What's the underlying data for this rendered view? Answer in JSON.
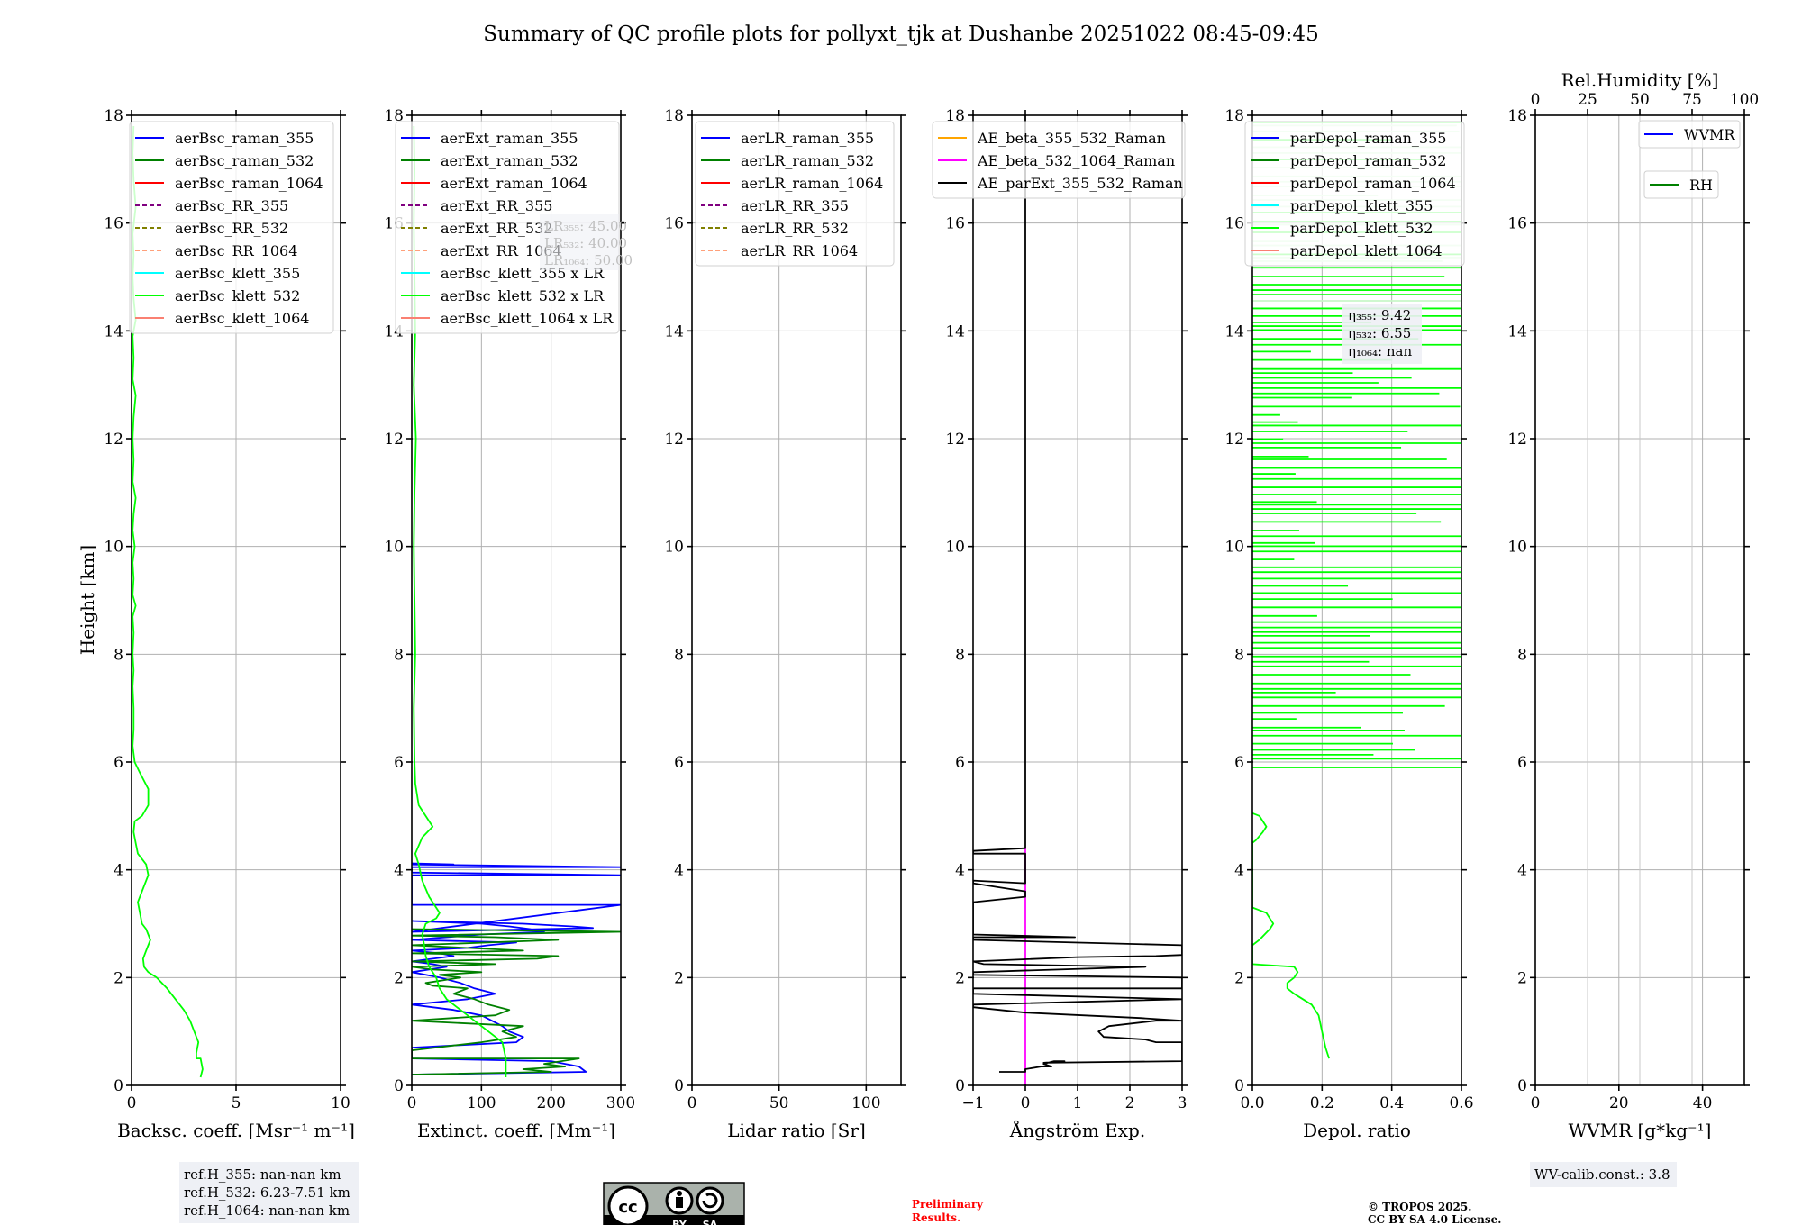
{
  "title": "Summary of QC profile plots for pollyxt_tjk at Dushanbe 20251022 08:45-09:45",
  "ylabel": "Height [km]",
  "chart_data": [
    {
      "type": "line",
      "id": "backscatter",
      "xlabel": "Backsc. coeff. [Msr⁻¹ m⁻¹]",
      "xlim": [
        0,
        10
      ],
      "xticks": [
        0,
        5,
        10
      ],
      "ylim": [
        0,
        18
      ],
      "yticks": [
        0,
        2,
        4,
        6,
        8,
        10,
        12,
        14,
        16,
        18
      ],
      "grid": true,
      "legend_position": "top-right",
      "legend": [
        {
          "label": "aerBsc_raman_355",
          "color": "#0000ff",
          "dash": false
        },
        {
          "label": "aerBsc_raman_532",
          "color": "#008000",
          "dash": false
        },
        {
          "label": "aerBsc_raman_1064",
          "color": "#ff0000",
          "dash": false
        },
        {
          "label": "aerBsc_RR_355",
          "color": "#800080",
          "dash": true
        },
        {
          "label": "aerBsc_RR_532",
          "color": "#808000",
          "dash": true
        },
        {
          "label": "aerBsc_RR_1064",
          "color": "#ffa07a",
          "dash": true
        },
        {
          "label": "aerBsc_klett_355",
          "color": "#00ffff",
          "dash": false
        },
        {
          "label": "aerBsc_klett_532",
          "color": "#00ff00",
          "dash": false
        },
        {
          "label": "aerBsc_klett_1064",
          "color": "#fa8072",
          "dash": false
        }
      ],
      "series": [
        {
          "name": "aerBsc_klett_532",
          "color": "#00ff00",
          "x": [
            3.3,
            3.4,
            3.3,
            3.1,
            3.1,
            3.2,
            3.0,
            2.8,
            2.5,
            2.1,
            1.7,
            1.2,
            0.8,
            0.6,
            0.55,
            0.7,
            0.9,
            0.7,
            0.5,
            0.4,
            0.3,
            0.5,
            0.8,
            0.7,
            0.3,
            0.2,
            0.1,
            0.15,
            0.5,
            0.8,
            0.8,
            0.4,
            0.15,
            0.05,
            0.1,
            0.1,
            0.05,
            0.1,
            0.05,
            0.1,
            0.05,
            0.2,
            0.05,
            0.1,
            0.05,
            0.15,
            0.05,
            0.1,
            0.2,
            0.05,
            0.1,
            0.05,
            0.1,
            0.2,
            0.05,
            0.1,
            0.05,
            0.2,
            0.1,
            0.05,
            0.1,
            0.05,
            0.2,
            0.1,
            0.05,
            0.1
          ],
          "y": [
            0.15,
            0.3,
            0.5,
            0.5,
            0.6,
            0.8,
            1.0,
            1.2,
            1.4,
            1.6,
            1.8,
            2.0,
            2.1,
            2.2,
            2.35,
            2.5,
            2.7,
            2.9,
            3.0,
            3.2,
            3.4,
            3.6,
            3.9,
            4.1,
            4.3,
            4.5,
            4.7,
            4.9,
            5.0,
            5.2,
            5.5,
            5.8,
            6.0,
            6.3,
            6.6,
            7.0,
            7.4,
            7.7,
            8.0,
            8.4,
            8.7,
            8.9,
            9.1,
            9.4,
            9.7,
            10.0,
            10.3,
            10.6,
            10.9,
            11.2,
            11.6,
            12.0,
            12.4,
            12.8,
            13.1,
            13.5,
            13.9,
            14.2,
            14.6,
            15.0,
            15.4,
            15.8,
            16.3,
            16.8,
            17.3,
            17.8
          ]
        }
      ],
      "annotation": [
        "ref.H_355: nan-nan km",
        "ref.H_532: 6.23-7.51 km",
        "ref.H_1064: nan-nan km"
      ]
    },
    {
      "type": "line",
      "id": "extinction",
      "xlabel": "Extinct. coeff. [Mm⁻¹]",
      "xlim": [
        0,
        300
      ],
      "xticks": [
        0,
        100,
        200,
        300
      ],
      "ylim": [
        0,
        18
      ],
      "yticks": [
        0,
        2,
        4,
        6,
        8,
        10,
        12,
        14,
        16,
        18
      ],
      "grid": true,
      "legend_position": "top-right",
      "legend": [
        {
          "label": "aerExt_raman_355",
          "color": "#0000ff",
          "dash": false
        },
        {
          "label": "aerExt_raman_532",
          "color": "#008000",
          "dash": false
        },
        {
          "label": "aerExt_raman_1064",
          "color": "#ff0000",
          "dash": false
        },
        {
          "label": "aerExt_RR_355",
          "color": "#800080",
          "dash": true
        },
        {
          "label": "aerExt_RR_532",
          "color": "#808000",
          "dash": true
        },
        {
          "label": "aerExt_RR_1064",
          "color": "#ffa07a",
          "dash": true
        },
        {
          "label": "aerBsc_klett_355 x LR",
          "color": "#00ffff",
          "dash": false
        },
        {
          "label": "aerBsc_klett_532 x LR",
          "color": "#00ff00",
          "dash": false
        },
        {
          "label": "aerBsc_klett_1064 x LR",
          "color": "#fa8072",
          "dash": false
        }
      ],
      "lr_annotation": [
        "LR₃₅₅: 45.00",
        "LR₅₃₂: 40.00",
        "LR₁₀₆₄: 50.00"
      ],
      "series": [
        {
          "name": "aerExt_raman_355",
          "color": "#0000ff",
          "x": [
            0,
            250,
            240,
            220,
            200,
            0,
            0,
            150,
            160,
            140,
            130,
            100,
            60,
            0,
            80,
            120,
            90,
            70,
            40,
            20,
            0,
            50,
            30,
            0,
            60,
            40,
            0,
            80,
            110,
            150,
            0,
            100,
            190,
            170,
            140,
            100,
            0,
            160,
            230,
            260,
            0,
            300,
            0,
            0,
            300,
            0,
            0,
            300,
            0,
            60,
            0
          ],
          "y": [
            0.2,
            0.25,
            0.35,
            0.4,
            0.45,
            0.5,
            0.7,
            0.8,
            0.9,
            1.0,
            1.1,
            1.3,
            1.4,
            1.5,
            1.6,
            1.7,
            1.8,
            1.9,
            2.0,
            2.05,
            2.1,
            2.2,
            2.25,
            2.3,
            2.4,
            2.45,
            2.5,
            2.55,
            2.6,
            2.65,
            2.7,
            2.8,
            2.85,
            2.9,
            2.95,
            3.0,
            3.05,
            3.0,
            2.95,
            2.92,
            2.85,
            3.35,
            3.35,
            3.9,
            3.9,
            3.95,
            4.05,
            4.05,
            4.1,
            4.1,
            4.12
          ]
        },
        {
          "name": "aerExt_raman_532",
          "color": "#008000",
          "x": [
            0,
            200,
            160,
            220,
            190,
            240,
            0,
            0,
            100,
            150,
            130,
            160,
            0,
            120,
            140,
            110,
            90,
            60,
            80,
            30,
            20,
            70,
            40,
            100,
            30,
            0,
            120,
            0,
            180,
            210,
            0,
            160,
            0,
            210,
            120,
            0,
            300,
            0
          ],
          "y": [
            0.2,
            0.25,
            0.3,
            0.35,
            0.4,
            0.5,
            0.5,
            0.65,
            0.8,
            0.9,
            1.0,
            1.1,
            1.2,
            1.3,
            1.4,
            1.5,
            1.6,
            1.7,
            1.8,
            1.85,
            1.9,
            2.0,
            2.05,
            2.1,
            2.15,
            2.2,
            2.25,
            2.3,
            2.35,
            2.4,
            2.45,
            2.5,
            2.6,
            2.7,
            2.75,
            2.78,
            2.85,
            2.9
          ]
        },
        {
          "name": "aerBsc_klett_532 x LR",
          "color": "#00ff00",
          "x": [
            135,
            135,
            130,
            110,
            90,
            70,
            50,
            40,
            35,
            25,
            20,
            18,
            15,
            20,
            35,
            40,
            25,
            15,
            10,
            5,
            15,
            30,
            25,
            10,
            5,
            4,
            3,
            5,
            4,
            3,
            4,
            6,
            3,
            5,
            4,
            3,
            4,
            3
          ],
          "y": [
            0.15,
            0.5,
            0.8,
            1.0,
            1.2,
            1.4,
            1.6,
            1.8,
            2.0,
            2.2,
            2.4,
            2.6,
            2.8,
            3.0,
            3.1,
            3.2,
            3.5,
            3.8,
            4.1,
            4.3,
            4.6,
            4.8,
            4.9,
            5.2,
            5.6,
            6.0,
            7.0,
            8.0,
            9.0,
            10.0,
            11.0,
            12.0,
            13.0,
            14.0,
            15.0,
            16.0,
            17.0,
            17.8
          ]
        }
      ]
    },
    {
      "type": "line",
      "id": "lidar-ratio",
      "xlabel": "Lidar ratio [Sr]",
      "xlim": [
        0,
        120
      ],
      "xticks": [
        0,
        50,
        100
      ],
      "ylim": [
        0,
        18
      ],
      "yticks": [
        0,
        2,
        4,
        6,
        8,
        10,
        12,
        14,
        16,
        18
      ],
      "grid": true,
      "legend_position": "top-right",
      "legend": [
        {
          "label": "aerLR_raman_355",
          "color": "#0000ff",
          "dash": false
        },
        {
          "label": "aerLR_raman_532",
          "color": "#008000",
          "dash": false
        },
        {
          "label": "aerLR_raman_1064",
          "color": "#ff0000",
          "dash": false
        },
        {
          "label": "aerLR_RR_355",
          "color": "#800080",
          "dash": true
        },
        {
          "label": "aerLR_RR_532",
          "color": "#808000",
          "dash": true
        },
        {
          "label": "aerLR_RR_1064",
          "color": "#ffa07a",
          "dash": true
        }
      ],
      "series": []
    },
    {
      "type": "line",
      "id": "angstrom",
      "xlabel": "Ångström Exp.",
      "xlim": [
        -1,
        3
      ],
      "xticks": [
        -1,
        0,
        1,
        2,
        3
      ],
      "xticklabels": [
        "−1",
        "0",
        "1",
        "2",
        "3"
      ],
      "ylim": [
        0,
        18
      ],
      "yticks": [
        0,
        2,
        4,
        6,
        8,
        10,
        12,
        14,
        16,
        18
      ],
      "grid": true,
      "legend_position": "top-left",
      "legend": [
        {
          "label": "AE_beta_355_532_Raman",
          "color": "#ffa500",
          "dash": false
        },
        {
          "label": "AE_beta_532_1064_Raman",
          "color": "#ff00ff",
          "dash": false
        },
        {
          "label": "AE_parExt_355_532_Raman",
          "color": "#000000",
          "dash": false
        }
      ],
      "series": [
        {
          "name": "AE_beta_532_1064_Raman",
          "color": "#ff00ff",
          "x": [
            0,
            0
          ],
          "y": [
            0,
            4.4
          ]
        },
        {
          "name": "AE_parExt_355_532_Raman",
          "color": "#000000",
          "x": [
            -0.5,
            0,
            0,
            0.3,
            0.5,
            0.35,
            0.55,
            0.75,
            0.35,
            3,
            3,
            2.5,
            2.3,
            1.5,
            1.4,
            1.6,
            2.5,
            3,
            2.2,
            0,
            -1,
            -1,
            3,
            3,
            -1,
            -1,
            3,
            3,
            -1,
            -1,
            2.3,
            -0.8,
            -1,
            1.0,
            2.5,
            3,
            3,
            -1,
            -1,
            0.95,
            -1,
            -1,
            0,
            0,
            -1,
            -1,
            0,
            0,
            -1,
            -1,
            0,
            0,
            0
          ],
          "y": [
            0.25,
            0.25,
            0.3,
            0.35,
            0.35,
            0.4,
            0.45,
            0.45,
            0.42,
            0.45,
            0.8,
            0.8,
            0.85,
            0.9,
            1.0,
            1.1,
            1.2,
            1.2,
            1.25,
            1.35,
            1.45,
            1.5,
            1.6,
            1.6,
            1.7,
            1.8,
            1.8,
            2.0,
            2.05,
            2.1,
            2.2,
            2.25,
            2.3,
            2.38,
            2.4,
            2.42,
            2.6,
            2.7,
            2.75,
            2.75,
            2.8,
            3.4,
            3.5,
            3.6,
            3.75,
            3.8,
            3.75,
            4.3,
            4.3,
            4.35,
            4.4,
            18,
            18
          ]
        }
      ]
    },
    {
      "type": "line",
      "id": "depolarization",
      "xlabel": "Depol. ratio",
      "xlim": [
        0,
        0.6
      ],
      "xticks": [
        0,
        0.2,
        0.4,
        0.6
      ],
      "xticklabels": [
        "0.0",
        "0.2",
        "0.4",
        "0.6"
      ],
      "ylim": [
        0,
        18
      ],
      "yticks": [
        0,
        2,
        4,
        6,
        8,
        10,
        12,
        14,
        16,
        18
      ],
      "grid": true,
      "legend_position": "top-left",
      "legend": [
        {
          "label": "parDepol_raman_355",
          "color": "#0000ff",
          "dash": false
        },
        {
          "label": "parDepol_raman_532",
          "color": "#008000",
          "dash": false
        },
        {
          "label": "parDepol_raman_1064",
          "color": "#ff0000",
          "dash": false
        },
        {
          "label": "parDepol_klett_355",
          "color": "#00ffff",
          "dash": false
        },
        {
          "label": "parDepol_klett_532",
          "color": "#00ff00",
          "dash": false
        },
        {
          "label": "parDepol_klett_1064",
          "color": "#fa8072",
          "dash": false
        }
      ],
      "eta_annotation": [
        "η₃₅₅: 9.42",
        "η₅₃₂: 6.55",
        "η₁₀₆₄: nan"
      ],
      "series": [
        {
          "name": "parDepol_klett_532",
          "color": "#00ff00",
          "x": [
            0.22,
            0.21,
            0.2,
            0.19,
            0.17,
            0.12,
            0.1,
            0.1,
            0.12,
            0.13,
            0.12,
            0.0,
            0.0,
            0.02,
            0.05,
            0.06,
            0.05,
            0.04,
            0.0,
            0.0,
            0.01,
            0.03,
            0.04,
            0.03,
            0.02,
            0.0
          ],
          "y": [
            0.5,
            0.7,
            1.0,
            1.3,
            1.5,
            1.7,
            1.8,
            1.9,
            2.0,
            2.1,
            2.2,
            2.25,
            2.6,
            2.7,
            2.9,
            3.0,
            3.1,
            3.2,
            3.3,
            4.5,
            4.55,
            4.7,
            4.8,
            4.9,
            5.0,
            5.05
          ]
        },
        {
          "name": "parDepol_klett_532_noise",
          "color": "#00ff00",
          "noisy_region_km": [
            5.9,
            18.0
          ],
          "x_range": [
            0,
            0.6
          ]
        }
      ]
    },
    {
      "type": "line",
      "id": "wvmr",
      "xlabel": "WVMR [g*kg⁻¹]",
      "xlim": [
        0,
        50
      ],
      "xticks": [
        0,
        20,
        40
      ],
      "ylim": [
        0,
        18
      ],
      "yticks": [
        0,
        2,
        4,
        6,
        8,
        10,
        12,
        14,
        16,
        18
      ],
      "secondary_xlabel": "Rel.Humidity [%]",
      "secondary_xlim": [
        0,
        100
      ],
      "secondary_xticks": [
        0,
        25,
        50,
        75,
        100
      ],
      "grid": true,
      "legend_position": "top-right",
      "legend": [
        {
          "label": "WVMR",
          "color": "#0000ff",
          "dash": false
        },
        {
          "label": "RH",
          "color": "#008000",
          "dash": false
        }
      ],
      "annotation": [
        "WV-calib.const.: 3.8"
      ],
      "series": []
    }
  ],
  "footer": {
    "preliminary": [
      "Preliminary",
      "Results."
    ],
    "copyright": [
      "© TROPOS 2025.",
      "CC BY SA 4.0 License."
    ],
    "cc_badge": {
      "by": "BY",
      "sa": "SA",
      "cc": "cc"
    }
  }
}
